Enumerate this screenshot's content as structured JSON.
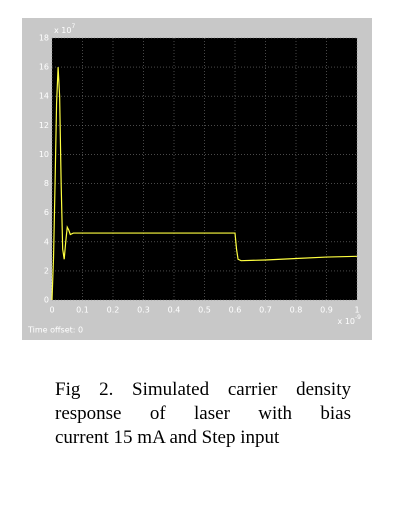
{
  "chart_data": {
    "type": "line",
    "x_multiplier": {
      "base": "x 10",
      "exponent": "-9"
    },
    "y_multiplier": {
      "base": "x 10",
      "exponent": "7"
    },
    "time_offset": "Time offset:  0",
    "series": [
      {
        "color": "#ffff40",
        "x": [
          0,
          0.005,
          0.01,
          0.015,
          0.02,
          0.025,
          0.03,
          0.035,
          0.04,
          0.045,
          0.05,
          0.055,
          0.06,
          0.07,
          0.1,
          0.3,
          0.6,
          0.605,
          0.61,
          0.62,
          0.7,
          0.8,
          0.9,
          1.0
        ],
        "values": [
          0,
          2.9,
          8,
          13.5,
          16,
          14,
          8,
          3.5,
          2.8,
          4,
          5,
          4.8,
          4.5,
          4.6,
          4.6,
          4.6,
          4.6,
          3.5,
          2.8,
          2.7,
          2.75,
          2.85,
          2.95,
          3.0
        ]
      }
    ],
    "xlim": [
      0,
      1
    ],
    "xticks": [
      0,
      0.1,
      0.2,
      0.3,
      0.4,
      0.5,
      0.6,
      0.7,
      0.8,
      0.9,
      1
    ],
    "ylim": [
      0,
      18
    ],
    "yticks": [
      0,
      2,
      4,
      6,
      8,
      10,
      12,
      14,
      16,
      18
    ],
    "grid": true
  },
  "caption": {
    "lines": [
      "Fig 2. Simulated carrier density",
      "response of laser with bias",
      "current 15 mA and Step input"
    ]
  }
}
